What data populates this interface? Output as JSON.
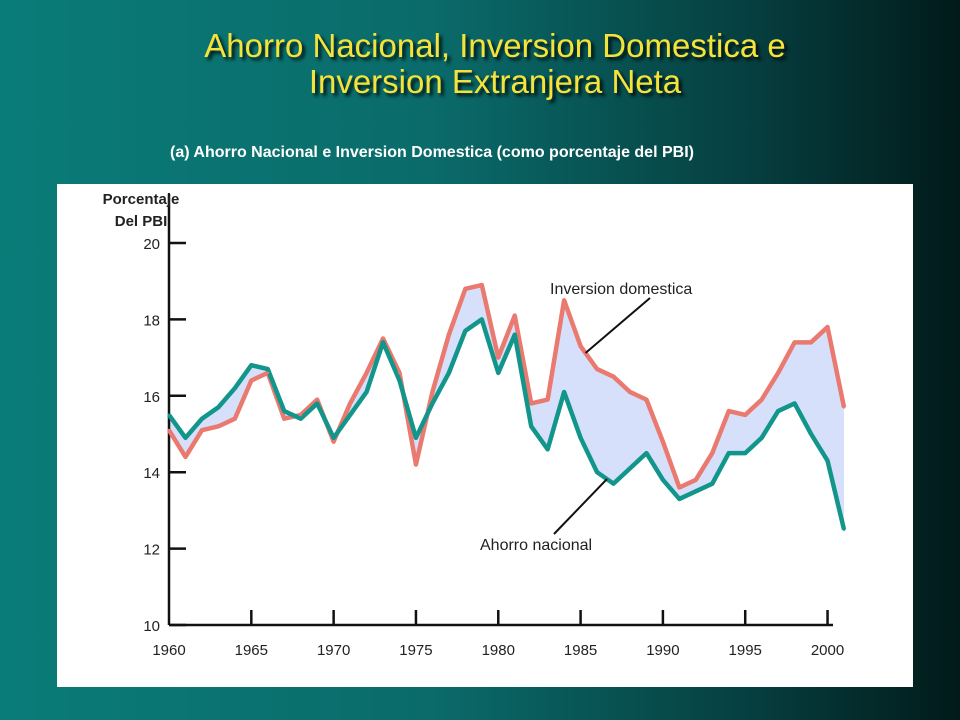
{
  "slide": {
    "title_line1": "Ahorro Nacional, Inversion Domestica e",
    "title_line2": "Inversion Extranjera Neta",
    "subtitle": "(a) Ahorro Nacional e Inversion Domestica (como porcentaje del PBI)"
  },
  "colors": {
    "inversion": "#ea7a6f",
    "ahorro": "#12958a",
    "fill": "#d6e0fb"
  },
  "chart_data": {
    "type": "line",
    "ylabel_line1": "Porcentaje",
    "ylabel_line2": "Del PBI",
    "ylim": [
      10,
      20
    ],
    "xlim": [
      1960,
      2001
    ],
    "yticks": [
      10,
      12,
      14,
      16,
      18,
      20
    ],
    "xticks": [
      1960,
      1965,
      1970,
      1975,
      1980,
      1985,
      1990,
      1995,
      2000
    ],
    "x": [
      1960,
      1961,
      1962,
      1963,
      1964,
      1965,
      1966,
      1967,
      1968,
      1969,
      1970,
      1971,
      1972,
      1973,
      1974,
      1975,
      1976,
      1977,
      1978,
      1979,
      1980,
      1981,
      1982,
      1983,
      1984,
      1985,
      1986,
      1987,
      1988,
      1989,
      1990,
      1991,
      1992,
      1993,
      1994,
      1995,
      1996,
      1997,
      1998,
      1999,
      2000,
      2001
    ],
    "series": [
      {
        "name": "Inversion domestica",
        "values": [
          15.1,
          14.4,
          15.1,
          15.2,
          15.4,
          16.4,
          16.6,
          15.4,
          15.5,
          15.9,
          14.8,
          15.8,
          16.6,
          17.5,
          16.6,
          14.2,
          16.1,
          17.6,
          18.8,
          18.9,
          17.0,
          18.1,
          15.8,
          15.9,
          18.5,
          17.3,
          16.7,
          16.5,
          16.1,
          15.9,
          14.8,
          13.6,
          13.8,
          14.5,
          15.6,
          15.5,
          15.9,
          16.6,
          17.4,
          17.4,
          17.8,
          15.7
        ]
      },
      {
        "name": "Ahorro nacional",
        "values": [
          15.5,
          14.9,
          15.4,
          15.7,
          16.2,
          16.8,
          16.7,
          15.6,
          15.4,
          15.8,
          14.9,
          15.5,
          16.1,
          17.4,
          16.4,
          14.9,
          15.8,
          16.6,
          17.7,
          18.0,
          16.6,
          17.6,
          15.2,
          14.6,
          16.1,
          14.9,
          14.0,
          13.7,
          14.1,
          14.5,
          13.8,
          13.3,
          13.5,
          13.7,
          14.5,
          14.5,
          14.9,
          15.6,
          15.8,
          15.0,
          14.3,
          12.5
        ]
      }
    ],
    "annotations": [
      {
        "text": "Inversion domestica",
        "series": "Inversion domestica",
        "at_x": 1985.3
      },
      {
        "text": "Ahorro nacional",
        "series": "Ahorro nacional",
        "at_x": 1986.6
      }
    ]
  }
}
